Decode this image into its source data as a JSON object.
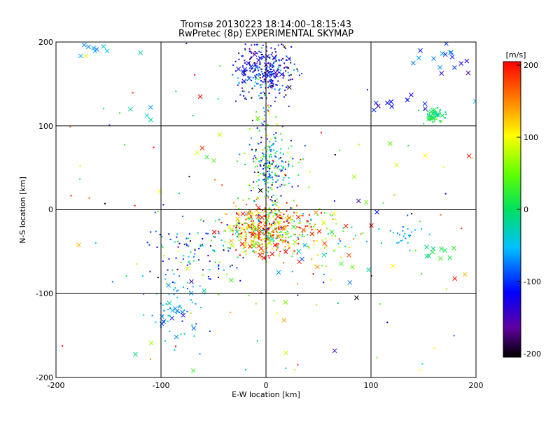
{
  "chart_data": {
    "type": "scatter",
    "title": "Tromsø 20130223 18:14:00–18:15:43",
    "subtitle": "RwPretec (8p) EXPERIMENTAL SKYMAP",
    "xlabel": "E-W location [km]",
    "ylabel": "N-S location [km]",
    "xlim": [
      -200,
      200
    ],
    "ylim": [
      -200,
      200
    ],
    "x_ticks": [
      "-200",
      "-100",
      "0",
      "100",
      "200"
    ],
    "y_ticks": [
      "200",
      "100",
      "0",
      "-100",
      "-200"
    ],
    "grid": true,
    "colorbar": {
      "label": "[m/s]",
      "range": [
        -200,
        200
      ],
      "ticks": [
        "200",
        "100",
        "0",
        "-100",
        "-200"
      ]
    },
    "markers": {
      "small": "dot",
      "large": "x"
    },
    "clusters": [
      {
        "x": 0,
        "y": 165,
        "sx": 15,
        "sy": 18,
        "n": 280,
        "vel_mean": -115,
        "vel_sd": 45,
        "marker": "dot"
      },
      {
        "x": -5,
        "y": 165,
        "sx": 12,
        "sy": 10,
        "n": 25,
        "vel_mean": -120,
        "vel_sd": 25,
        "marker": "x"
      },
      {
        "x": 5,
        "y": 50,
        "sx": 12,
        "sy": 20,
        "n": 180,
        "vel_mean": -40,
        "vel_sd": 80,
        "marker": "dot"
      },
      {
        "x": 0,
        "y": 80,
        "sx": 6,
        "sy": 30,
        "n": 60,
        "vel_mean": -30,
        "vel_sd": 110,
        "marker": "dot"
      },
      {
        "x": 0,
        "y": -22,
        "sx": 18,
        "sy": 15,
        "n": 420,
        "vel_mean": 120,
        "vel_sd": 95,
        "marker": "dot"
      },
      {
        "x": -5,
        "y": -30,
        "sx": 20,
        "sy": 15,
        "n": 55,
        "vel_mean": 140,
        "vel_sd": 80,
        "marker": "x"
      },
      {
        "x": -65,
        "y": -45,
        "sx": 25,
        "sy": 25,
        "n": 120,
        "vel_mean": -60,
        "vel_sd": 80,
        "marker": "dot"
      },
      {
        "x": -85,
        "y": -120,
        "sx": 12,
        "sy": 20,
        "n": 50,
        "vel_mean": -60,
        "vel_sd": 25,
        "marker": "dot"
      },
      {
        "x": -90,
        "y": -120,
        "sx": 12,
        "sy": 18,
        "n": 14,
        "vel_mean": -60,
        "vel_sd": 20,
        "marker": "x"
      },
      {
        "x": 160,
        "y": 112,
        "sx": 6,
        "sy": 6,
        "n": 40,
        "vel_mean": 5,
        "vel_sd": 15,
        "marker": "dot"
      },
      {
        "x": 160,
        "y": 112,
        "sx": 5,
        "sy": 5,
        "n": 12,
        "vel_mean": 5,
        "vel_sd": 15,
        "marker": "x"
      },
      {
        "x": 160,
        "y": -50,
        "sx": 10,
        "sy": 8,
        "n": 10,
        "vel_mean": 10,
        "vel_sd": 10,
        "marker": "x"
      },
      {
        "x": 130,
        "y": -30,
        "sx": 10,
        "sy": 8,
        "n": 25,
        "vel_mean": -50,
        "vel_sd": 20,
        "marker": "dot"
      },
      {
        "x": 40,
        "y": -30,
        "sx": 25,
        "sy": 20,
        "n": 80,
        "vel_mean": 60,
        "vel_sd": 90,
        "marker": "dot"
      },
      {
        "x": 40,
        "y": -40,
        "sx": 30,
        "sy": 25,
        "n": 18,
        "vel_mean": 40,
        "vel_sd": 110,
        "marker": "x"
      },
      {
        "x": 0,
        "y": 0,
        "sx": 140,
        "sy": 140,
        "n": 160,
        "vel_mean": 0,
        "vel_sd": 130,
        "marker": "dot"
      },
      {
        "x": 0,
        "y": 0,
        "sx": 140,
        "sy": 140,
        "n": 70,
        "vel_mean": 0,
        "vel_sd": 130,
        "marker": "x"
      },
      {
        "x": 170,
        "y": 185,
        "sx": 18,
        "sy": 10,
        "n": 18,
        "vel_mean": -90,
        "vel_sd": 30,
        "marker": "x"
      },
      {
        "x": -160,
        "y": 193,
        "sx": 10,
        "sy": 5,
        "n": 10,
        "vel_mean": -60,
        "vel_sd": 20,
        "marker": "x"
      },
      {
        "x": 120,
        "y": 130,
        "sx": 15,
        "sy": 5,
        "n": 10,
        "vel_mean": -110,
        "vel_sd": 20,
        "marker": "x"
      }
    ]
  }
}
